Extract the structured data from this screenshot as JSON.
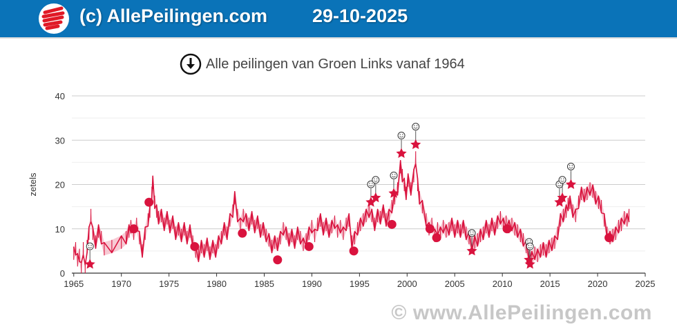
{
  "header": {
    "title": "(c) AllePeilingen.com",
    "date": "29-10-2025",
    "logo_icon": "allepeilingen-logo-icon",
    "background": "#0a73b8"
  },
  "chart_title": {
    "text": "Alle peilingen van Groen Links vanaf 1964",
    "icon": "download-arrow-icon"
  },
  "watermark": "© www.AllePeilingen.com",
  "chart_data": {
    "type": "line",
    "title": "Alle peilingen van Groen Links vanaf 1964",
    "xlabel": "",
    "ylabel": "zetels",
    "xlim": [
      1964.8,
      2025
    ],
    "ylim": [
      0,
      40
    ],
    "x_ticks": [
      1965,
      1970,
      1975,
      1980,
      1985,
      1990,
      1995,
      2000,
      2005,
      2010,
      2015,
      2020,
      2025
    ],
    "y_ticks": [
      0,
      10,
      20,
      30,
      40
    ],
    "grid": true,
    "color": "#d9133e",
    "series": [
      {
        "kind": "polls",
        "points": [
          [
            1965.0,
            4.5
          ],
          [
            1965.2,
            5.5
          ],
          [
            1965.4,
            3
          ],
          [
            1965.6,
            4
          ],
          [
            1965.8,
            1
          ],
          [
            1966.0,
            5.5
          ],
          [
            1966.2,
            0.5
          ],
          [
            1966.4,
            6
          ],
          [
            1966.6,
            9
          ],
          [
            1966.8,
            13
          ],
          [
            1967.0,
            9
          ],
          [
            1967.3,
            7
          ],
          [
            1967.6,
            9.5
          ],
          [
            1967.9,
            8
          ],
          [
            1968.2,
            5.5
          ],
          [
            1969.0,
            6
          ],
          [
            1970.0,
            7
          ],
          [
            1970.5,
            8
          ],
          [
            1970.8,
            9.5
          ],
          [
            1971.0,
            10.5
          ],
          [
            1971.3,
            9
          ],
          [
            1971.6,
            11
          ],
          [
            1971.9,
            8
          ],
          [
            1972.2,
            5
          ],
          [
            1972.5,
            9
          ],
          [
            1972.8,
            12
          ],
          [
            1973.0,
            14
          ],
          [
            1973.2,
            18
          ],
          [
            1973.3,
            20.5
          ],
          [
            1973.5,
            16
          ],
          [
            1973.7,
            14
          ],
          [
            1973.9,
            12.5
          ],
          [
            1974.2,
            13
          ],
          [
            1974.5,
            11
          ],
          [
            1974.8,
            12.5
          ],
          [
            1975.1,
            10.5
          ],
          [
            1975.4,
            11.5
          ],
          [
            1975.7,
            9
          ],
          [
            1976.0,
            10
          ],
          [
            1976.3,
            8.5
          ],
          [
            1976.6,
            10
          ],
          [
            1976.9,
            8
          ],
          [
            1977.2,
            9.5
          ],
          [
            1977.5,
            7
          ],
          [
            1977.8,
            5
          ],
          [
            1978.1,
            4
          ],
          [
            1978.4,
            6
          ],
          [
            1978.7,
            5
          ],
          [
            1979.0,
            6.5
          ],
          [
            1979.3,
            4.5
          ],
          [
            1979.6,
            6
          ],
          [
            1979.9,
            5
          ],
          [
            1980.2,
            7
          ],
          [
            1980.5,
            8
          ],
          [
            1980.8,
            10
          ],
          [
            1981.1,
            9
          ],
          [
            1981.4,
            12
          ],
          [
            1981.7,
            14
          ],
          [
            1981.9,
            17
          ],
          [
            1982.2,
            13
          ],
          [
            1982.5,
            11
          ],
          [
            1982.8,
            13
          ],
          [
            1983.1,
            12
          ],
          [
            1983.4,
            11
          ],
          [
            1983.7,
            12.5
          ],
          [
            1984.0,
            10.5
          ],
          [
            1984.3,
            11.5
          ],
          [
            1984.6,
            9.5
          ],
          [
            1984.9,
            10
          ],
          [
            1985.2,
            8.5
          ],
          [
            1985.5,
            7.5
          ],
          [
            1985.8,
            6
          ],
          [
            1986.1,
            7
          ],
          [
            1986.4,
            6.5
          ],
          [
            1986.7,
            8
          ],
          [
            1987.0,
            10
          ],
          [
            1987.3,
            9
          ],
          [
            1987.6,
            7.5
          ],
          [
            1987.9,
            8.5
          ],
          [
            1988.2,
            7
          ],
          [
            1988.5,
            9
          ],
          [
            1988.8,
            8
          ],
          [
            1989.1,
            6.5
          ],
          [
            1989.4,
            7.5
          ],
          [
            1989.7,
            9
          ],
          [
            1990.0,
            10.5
          ],
          [
            1990.3,
            8.5
          ],
          [
            1990.6,
            11
          ],
          [
            1990.9,
            12
          ],
          [
            1991.2,
            10
          ],
          [
            1991.5,
            11
          ],
          [
            1991.8,
            9.5
          ],
          [
            1992.1,
            10.5
          ],
          [
            1992.4,
            11.5
          ],
          [
            1992.7,
            9.5
          ],
          [
            1993.0,
            10.5
          ],
          [
            1993.3,
            9
          ],
          [
            1993.6,
            11
          ],
          [
            1993.9,
            12
          ],
          [
            1994.2,
            7
          ],
          [
            1994.5,
            8
          ],
          [
            1994.8,
            10
          ],
          [
            1995.1,
            11
          ],
          [
            1995.4,
            12
          ],
          [
            1995.7,
            13
          ],
          [
            1996.0,
            14
          ],
          [
            1996.3,
            13
          ],
          [
            1996.6,
            11
          ],
          [
            1996.9,
            13
          ],
          [
            1997.2,
            12.5
          ],
          [
            1997.5,
            14
          ],
          [
            1997.8,
            12
          ],
          [
            1998.1,
            13
          ],
          [
            1998.4,
            15
          ],
          [
            1998.7,
            17
          ],
          [
            1999.0,
            19
          ],
          [
            1999.3,
            24
          ],
          [
            1999.5,
            22
          ],
          [
            1999.7,
            20
          ],
          [
            1999.9,
            18
          ],
          [
            2000.1,
            21
          ],
          [
            2000.4,
            19
          ],
          [
            2000.7,
            22
          ],
          [
            2000.9,
            26
          ],
          [
            2001.1,
            20
          ],
          [
            2001.3,
            17
          ],
          [
            2001.6,
            15
          ],
          [
            2002.0,
            12
          ],
          [
            2002.3,
            10
          ],
          [
            2002.6,
            11
          ],
          [
            2002.9,
            8.5
          ],
          [
            2003.2,
            10
          ],
          [
            2003.5,
            9
          ],
          [
            2003.8,
            10.5
          ],
          [
            2004.1,
            9.5
          ],
          [
            2004.4,
            10
          ],
          [
            2004.7,
            11
          ],
          [
            2005.0,
            9.5
          ],
          [
            2005.3,
            10.5
          ],
          [
            2005.6,
            9.5
          ],
          [
            2005.9,
            10.5
          ],
          [
            2006.2,
            9
          ],
          [
            2006.5,
            8
          ],
          [
            2006.8,
            6.5
          ],
          [
            2007.1,
            7
          ],
          [
            2007.4,
            7.5
          ],
          [
            2007.7,
            8.5
          ],
          [
            2008.0,
            9
          ],
          [
            2008.3,
            10.5
          ],
          [
            2008.6,
            9.5
          ],
          [
            2008.9,
            11
          ],
          [
            2009.2,
            10
          ],
          [
            2009.5,
            11.5
          ],
          [
            2009.8,
            12.5
          ],
          [
            2010.1,
            11
          ],
          [
            2010.4,
            11.5
          ],
          [
            2010.7,
            10.5
          ],
          [
            2011.0,
            11
          ],
          [
            2011.3,
            10
          ],
          [
            2011.6,
            9.5
          ],
          [
            2011.9,
            8.5
          ],
          [
            2012.2,
            7.5
          ],
          [
            2012.5,
            6
          ],
          [
            2012.8,
            4
          ],
          [
            2013.1,
            3.5
          ],
          [
            2013.4,
            4.5
          ],
          [
            2013.7,
            4
          ],
          [
            2014.0,
            5
          ],
          [
            2014.3,
            5.5
          ],
          [
            2014.6,
            5
          ],
          [
            2014.9,
            6
          ],
          [
            2015.2,
            6.5
          ],
          [
            2015.5,
            7
          ],
          [
            2015.8,
            9
          ],
          [
            2016.1,
            12
          ],
          [
            2016.4,
            13
          ],
          [
            2016.7,
            14
          ],
          [
            2016.9,
            15.5
          ],
          [
            2017.1,
            16
          ],
          [
            2017.4,
            14
          ],
          [
            2017.7,
            13
          ],
          [
            2018.0,
            16
          ],
          [
            2018.3,
            18
          ],
          [
            2018.6,
            17.5
          ],
          [
            2018.9,
            18
          ],
          [
            2019.2,
            19
          ],
          [
            2019.5,
            18.5
          ],
          [
            2019.8,
            17
          ],
          [
            2020.1,
            16
          ],
          [
            2020.4,
            15
          ],
          [
            2020.7,
            12
          ],
          [
            2021.0,
            9
          ],
          [
            2021.3,
            8
          ],
          [
            2021.6,
            8.5
          ],
          [
            2021.9,
            9
          ],
          [
            2022.2,
            10.5
          ],
          [
            2022.5,
            11
          ],
          [
            2022.8,
            12.5
          ],
          [
            2023.1,
            12
          ],
          [
            2023.3,
            13
          ]
        ]
      },
      {
        "kind": "elections",
        "points": [
          [
            1971.3,
            10
          ],
          [
            1972.9,
            16
          ],
          [
            1977.7,
            6
          ],
          [
            1982.7,
            9
          ],
          [
            1986.4,
            3
          ],
          [
            1989.7,
            6
          ],
          [
            1994.4,
            5
          ],
          [
            1998.4,
            11
          ],
          [
            2002.4,
            10
          ],
          [
            2003.1,
            8
          ],
          [
            2010.5,
            10
          ],
          [
            2021.2,
            8
          ]
        ]
      },
      {
        "kind": "peaks",
        "points": [
          [
            1966.7,
            2
          ],
          [
            1996.2,
            16
          ],
          [
            1996.7,
            17
          ],
          [
            1998.6,
            18
          ],
          [
            1999.4,
            27
          ],
          [
            2000.9,
            29
          ],
          [
            2006.8,
            5
          ],
          [
            2012.8,
            3
          ],
          [
            2012.9,
            2
          ],
          [
            2016.0,
            16
          ],
          [
            2016.3,
            17
          ],
          [
            2017.2,
            20
          ]
        ]
      }
    ]
  }
}
